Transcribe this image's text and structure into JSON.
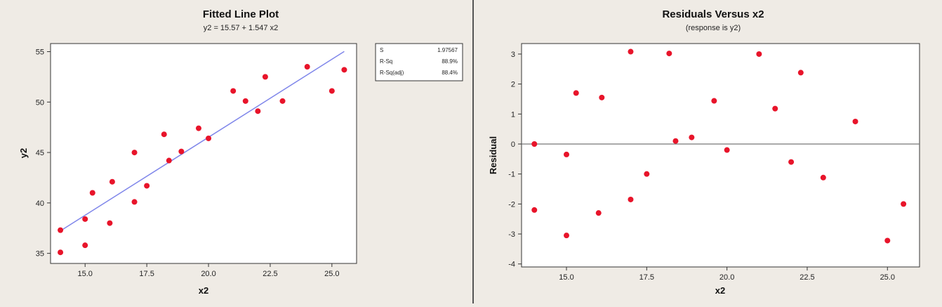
{
  "chart_data": [
    {
      "type": "scatter",
      "title": "Fitted Line Plot",
      "subtitle": "y2 =  15.57 + 1.547 x2",
      "xlabel": "x2",
      "ylabel": "y2",
      "xlim": [
        13.6,
        26.0
      ],
      "ylim": [
        34,
        55.8
      ],
      "xticks": [
        "15.0",
        "17.5",
        "20.0",
        "22.5",
        "25.0"
      ],
      "yticks": [
        "35",
        "40",
        "45",
        "50",
        "55"
      ],
      "colors": {
        "points": "#e8142a",
        "fit_line": "#7f86ea",
        "axes": "#333333"
      },
      "fit_line": {
        "intercept": 15.57,
        "slope": 1.547,
        "x_range": [
          14,
          25.5
        ]
      },
      "series": [
        {
          "x": [
            14,
            14,
            15,
            15,
            15.3,
            16,
            16.1,
            17,
            17,
            17.5,
            18.2,
            18.4,
            18.9,
            19.6,
            20,
            21,
            21.5,
            22,
            22.3,
            23,
            24,
            25,
            25.5
          ],
          "y": [
            37.3,
            35.1,
            38.4,
            35.8,
            41.0,
            38.0,
            42.1,
            45.0,
            40.1,
            41.7,
            46.8,
            44.2,
            45.1,
            47.4,
            46.4,
            51.1,
            50.1,
            49.1,
            52.5,
            50.1,
            53.5,
            51.1,
            53.2
          ]
        }
      ],
      "legend": {
        "placement": "right",
        "rows": [
          {
            "label": "S",
            "value": "1.97567"
          },
          {
            "label": "R-Sq",
            "value": "88.9%"
          },
          {
            "label": "R-Sq(adj)",
            "value": "88.4%"
          }
        ]
      }
    },
    {
      "type": "scatter",
      "title": "Residuals Versus x2",
      "subtitle": "(response is y2)",
      "xlabel": "x2",
      "ylabel": "Residual",
      "xlim": [
        13.6,
        26.0
      ],
      "ylim": [
        -4.1,
        3.35
      ],
      "xticks": [
        "15.0",
        "17.5",
        "20.0",
        "22.5",
        "25.0"
      ],
      "yticks": [
        "3",
        "2",
        "1",
        "0",
        "-1",
        "-2",
        "-3",
        "-4"
      ],
      "colors": {
        "points": "#e8142a",
        "reference_line": "#777777",
        "axes": "#333333"
      },
      "reference_line": 0,
      "series": [
        {
          "x": [
            14,
            14,
            15,
            15,
            15.3,
            16,
            16.1,
            17,
            17,
            17.5,
            18.2,
            18.4,
            18.9,
            19.6,
            20,
            21,
            21.5,
            22,
            22.3,
            23,
            24,
            25,
            25.5
          ],
          "y": [
            0.0,
            -2.2,
            -0.35,
            -3.05,
            1.7,
            -2.3,
            1.55,
            3.08,
            -1.85,
            -1.0,
            3.02,
            0.1,
            0.22,
            1.44,
            -0.2,
            3.0,
            1.18,
            -0.6,
            2.38,
            -1.12,
            0.75,
            -3.22,
            -2.0
          ]
        }
      ]
    }
  ]
}
